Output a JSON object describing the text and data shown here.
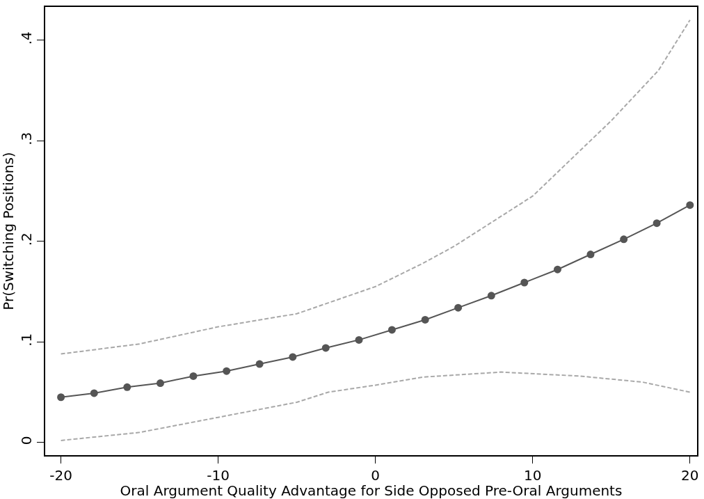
{
  "chart_data": {
    "type": "line",
    "xlabel": "Oral Argument Quality Advantage for Side Opposed Pre-Oral Arguments",
    "ylabel": "Pr(Switching Positions)",
    "xlim": [
      -21,
      20.45
    ],
    "ylim": [
      -0.0126,
      0.433
    ],
    "xticks": [
      -20,
      -10,
      0,
      10,
      20
    ],
    "yticks": [
      {
        "value": 0,
        "label": "0"
      },
      {
        "value": 0.1,
        "label": ".1"
      },
      {
        "value": 0.2,
        "label": ".2"
      },
      {
        "value": 0.3,
        "label": ".3"
      },
      {
        "value": 0.4,
        "label": ".4"
      }
    ],
    "series": [
      {
        "color": "#555555",
        "marker": "circle",
        "line_style": "solid",
        "x": [
          -20,
          -17.89,
          -15.79,
          -13.68,
          -11.58,
          -9.47,
          -7.37,
          -5.26,
          -3.16,
          -1.05,
          1.05,
          3.16,
          5.26,
          7.37,
          9.47,
          11.58,
          13.68,
          15.79,
          17.89,
          20
        ],
        "values": [
          0.045,
          0.049,
          0.055,
          0.059,
          0.066,
          0.071,
          0.078,
          0.085,
          0.094,
          0.102,
          0.112,
          0.122,
          0.134,
          0.146,
          0.159,
          0.172,
          0.187,
          0.202,
          0.218,
          0.236
        ]
      },
      {
        "color": "#a8a8a8",
        "marker": "none",
        "line_style": "dashed",
        "x": [
          -20,
          -15,
          -10,
          -5,
          0,
          3,
          5,
          10,
          12,
          15,
          18,
          20
        ],
        "values": [
          0.088,
          0.098,
          0.115,
          0.128,
          0.155,
          0.178,
          0.195,
          0.245,
          0.275,
          0.32,
          0.37,
          0.42
        ]
      },
      {
        "color": "#a8a8a8",
        "marker": "none",
        "line_style": "dashed",
        "x": [
          -20,
          -15,
          -10,
          -5,
          -3,
          0,
          3,
          8,
          13,
          17,
          20
        ],
        "values": [
          0.002,
          0.01,
          0.025,
          0.04,
          0.05,
          0.057,
          0.065,
          0.07,
          0.066,
          0.06,
          0.05
        ]
      }
    ]
  }
}
